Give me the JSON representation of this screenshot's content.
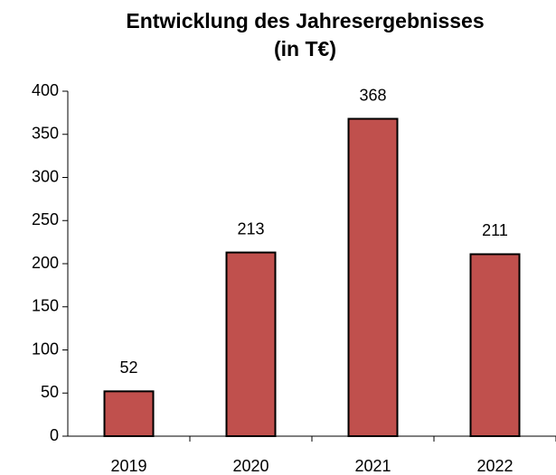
{
  "chart_data": {
    "type": "bar",
    "title": "Entwicklung des Jahresergebnisses\n(in T€)",
    "categories": [
      "2019",
      "2020",
      "2021",
      "2022"
    ],
    "values": [
      52,
      213,
      368,
      211
    ],
    "color": "#c0504d",
    "ylim": [
      0,
      400
    ],
    "yticks": [
      0,
      50,
      100,
      150,
      200,
      250,
      300,
      350,
      400
    ],
    "grid": false
  }
}
